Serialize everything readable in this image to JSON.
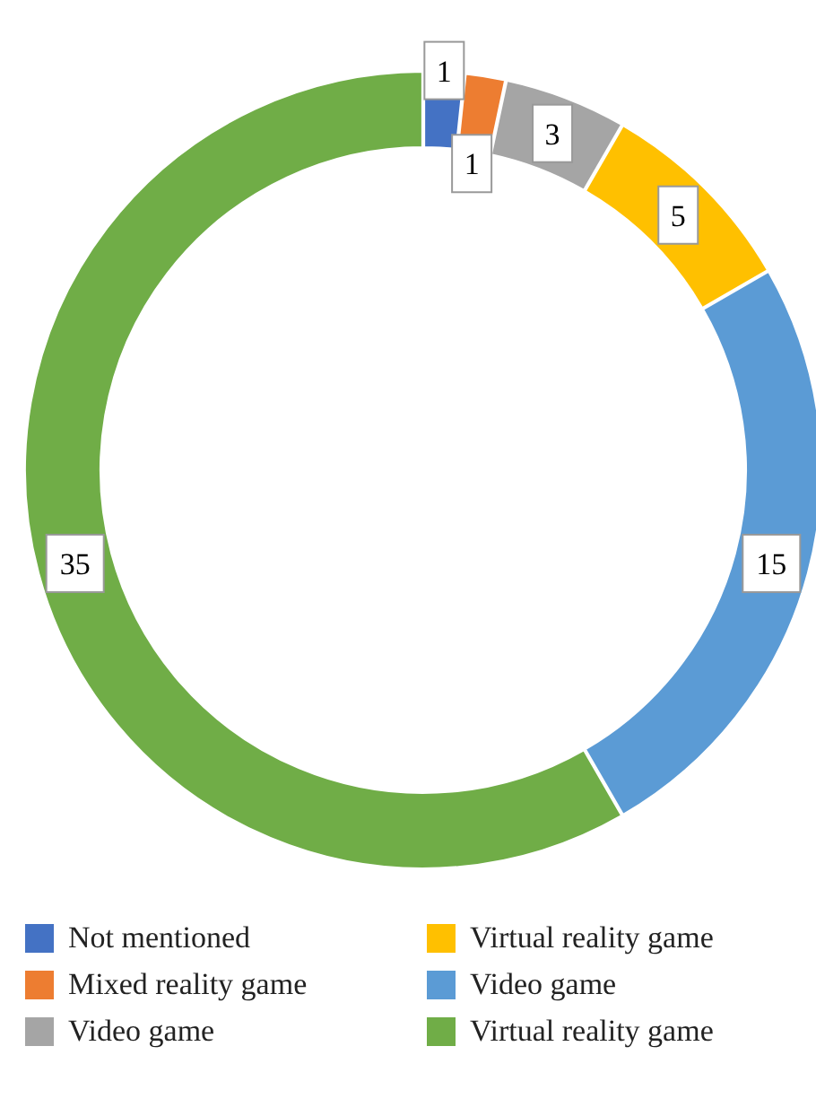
{
  "chart_data": {
    "type": "donut",
    "categories": [
      "Not mentioned",
      "Mixed reality game",
      "Video game",
      "Virtual reality game",
      "Video game",
      "Virtual reality game"
    ],
    "values": [
      1,
      1,
      3,
      5,
      15,
      35
    ],
    "colors": [
      "#4472c4",
      "#ed7d31",
      "#a5a5a5",
      "#ffc000",
      "#5b9bd5",
      "#70ad47"
    ],
    "data_labels": true,
    "legend": "bottom"
  }
}
